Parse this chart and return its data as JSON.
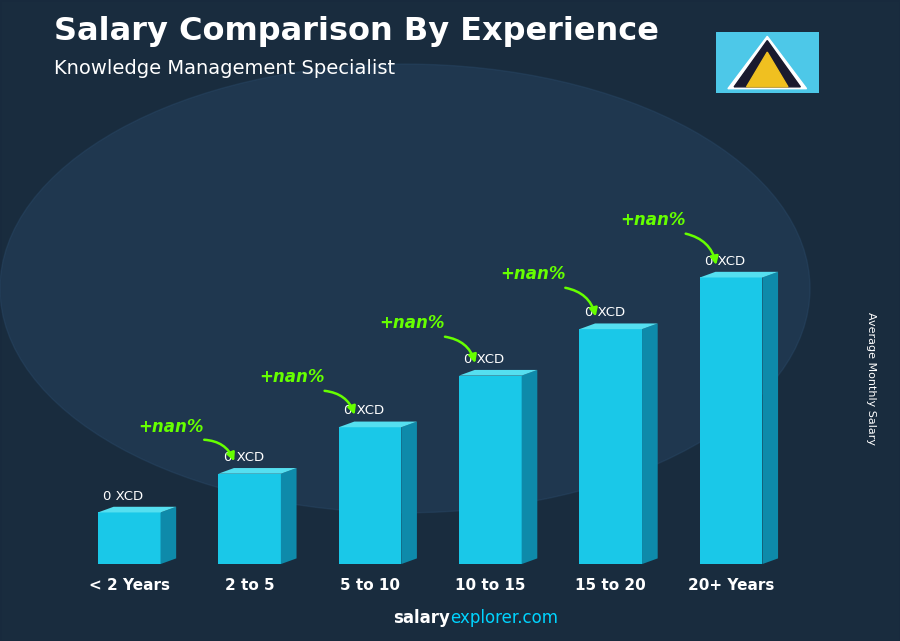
{
  "title": "Salary Comparison By Experience",
  "subtitle": "Knowledge Management Specialist",
  "categories": [
    "< 2 Years",
    "2 to 5",
    "5 to 10",
    "10 to 15",
    "15 to 20",
    "20+ Years"
  ],
  "bar_heights": [
    1.0,
    1.75,
    2.65,
    3.65,
    4.55,
    5.55
  ],
  "value_labels": [
    "0 XCD",
    "0 XCD",
    "0 XCD",
    "0 XCD",
    "0 XCD",
    "0 XCD"
  ],
  "pct_labels": [
    "+nan%",
    "+nan%",
    "+nan%",
    "+nan%",
    "+nan%"
  ],
  "ylabel": "Average Monthly Salary",
  "bg_color": "#1e3245",
  "bar_face_color": "#1ac8e8",
  "bar_top_color": "#55dff0",
  "bar_right_color": "#0e8aaa",
  "bar_bottom_color": "#0a6a88",
  "green_color": "#66ff00",
  "title_color": "#ffffff",
  "label_color": "#ffffff",
  "footer_salary_color": "#ffffff",
  "footer_explorer_color": "#00d4ff",
  "flag_bg": "#4dc8e8",
  "flag_white": "#ffffff",
  "flag_black": "#1a1a2e",
  "flag_yellow": "#f0c020"
}
